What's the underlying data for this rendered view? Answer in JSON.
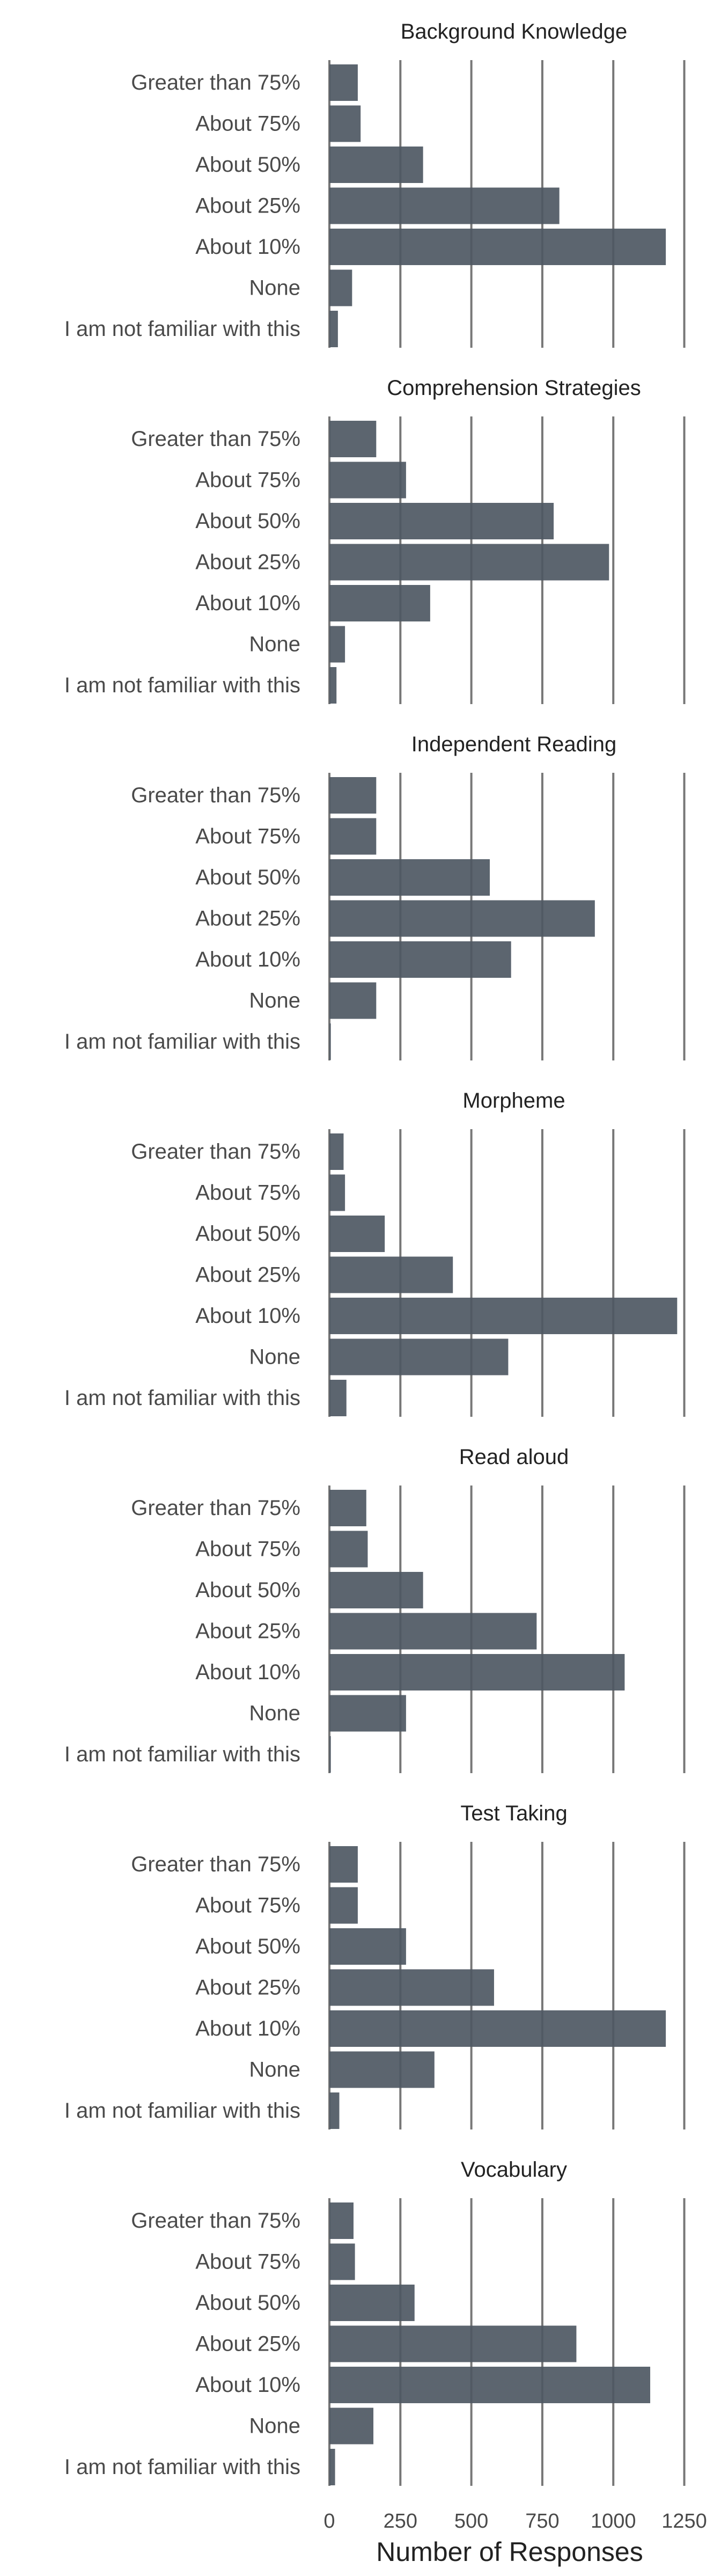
{
  "chart_data": {
    "type": "bar",
    "orientation": "horizontal",
    "facet": "vertical",
    "xlabel": "Number of Responses",
    "xlim": [
      0,
      1300
    ],
    "xticks": [
      0,
      250,
      500,
      750,
      1000,
      1250
    ],
    "xtick_labels": [
      "0",
      "250",
      "500",
      "750",
      "1000",
      "1250"
    ],
    "grid": true,
    "bar_color": "#4e5863",
    "categories": [
      "Greater than 75%",
      "About 75%",
      "About 50%",
      "About 25%",
      "About 10%",
      "None",
      "I am not familiar with this"
    ],
    "panels": [
      {
        "title": "Background Knowledge",
        "values": [
          100,
          110,
          330,
          810,
          1185,
          80,
          30
        ]
      },
      {
        "title": "Comprehension Strategies",
        "values": [
          165,
          270,
          790,
          985,
          355,
          55,
          25
        ]
      },
      {
        "title": "Independent Reading",
        "values": [
          165,
          165,
          565,
          935,
          640,
          165,
          5
        ]
      },
      {
        "title": "Morpheme",
        "values": [
          50,
          55,
          195,
          435,
          1225,
          630,
          60
        ]
      },
      {
        "title": "Read aloud",
        "values": [
          130,
          135,
          330,
          730,
          1040,
          270,
          5
        ]
      },
      {
        "title": "Test Taking",
        "values": [
          100,
          100,
          270,
          580,
          1185,
          370,
          35
        ]
      },
      {
        "title": "Vocabulary",
        "values": [
          85,
          90,
          300,
          870,
          1130,
          155,
          20
        ]
      }
    ]
  }
}
